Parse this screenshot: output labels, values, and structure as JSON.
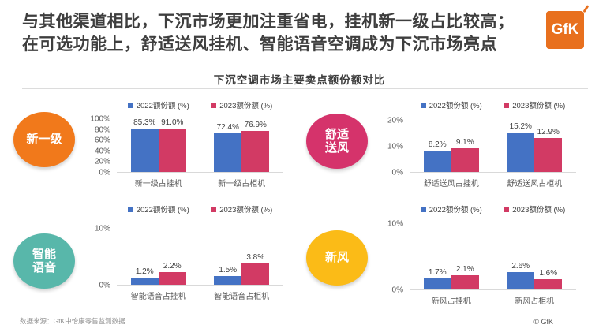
{
  "header": {
    "title_line1": "与其他渠道相比，下沉市场更加注重省电，挂机新一级占比较高；",
    "title_line2": "在可选功能上，舒适送风挂机、智能语音空调成为下沉市场亮点",
    "logo_text": "GfK"
  },
  "chart_section": {
    "title": "下沉空调市场主要卖点额份额对比"
  },
  "colors": {
    "bar_2022": "#4472C4",
    "bar_2023": "#D23A64",
    "logo_bg": "#E8701E",
    "title_text": "#3E3E3E"
  },
  "chart_data": {
    "type": "bar",
    "title": "下沉空调市场主要卖点额份额对比",
    "legend_position": "top",
    "grid": false,
    "groups": [
      {
        "badge": {
          "lines": [
            "新一级"
          ],
          "color": "#F1791B"
        },
        "ymax": 100,
        "yticks": [
          "100%",
          "80%",
          "60%",
          "40%",
          "20%",
          "0%"
        ],
        "categories": [
          "新一级占挂机",
          "新一级占柜机"
        ],
        "series": [
          {
            "name": "2022额份额 (%)",
            "color": "#4472C4",
            "values": [
              85.3,
              72.4
            ],
            "labels": [
              "85.3%",
              "72.4%"
            ]
          },
          {
            "name": "2023额份额 (%)",
            "color": "#D23A64",
            "values": [
              91.0,
              76.9
            ],
            "labels": [
              "91.0%",
              "76.9%"
            ]
          }
        ]
      },
      {
        "badge": {
          "lines": [
            "舒适",
            "送风"
          ],
          "color": "#D5336B"
        },
        "ymax": 20,
        "yticks": [
          "20%",
          "10%",
          "0%"
        ],
        "categories": [
          "舒适送风占挂机",
          "舒适送风占柜机"
        ],
        "series": [
          {
            "name": "2022额份额 (%)",
            "color": "#4472C4",
            "values": [
              8.2,
              15.2
            ],
            "labels": [
              "8.2%",
              "15.2%"
            ]
          },
          {
            "name": "2023额份额 (%)",
            "color": "#D23A64",
            "values": [
              9.1,
              12.9
            ],
            "labels": [
              "9.1%",
              "12.9%"
            ]
          }
        ]
      },
      {
        "badge": {
          "lines": [
            "智能",
            "语音"
          ],
          "color": "#58B7AA"
        },
        "ymax": 10,
        "yticks": [
          "10%",
          "0%"
        ],
        "categories": [
          "智能语音占挂机",
          "智能语音占柜机"
        ],
        "series": [
          {
            "name": "2022额份额 (%)",
            "color": "#4472C4",
            "values": [
              1.2,
              1.5
            ],
            "labels": [
              "1.2%",
              "1.5%"
            ]
          },
          {
            "name": "2023额份额 (%)",
            "color": "#D23A64",
            "values": [
              2.2,
              3.8
            ],
            "labels": [
              "2.2%",
              "3.8%"
            ]
          }
        ]
      },
      {
        "badge": {
          "lines": [
            "新风"
          ],
          "color": "#FBBB17"
        },
        "ymax": 10,
        "yticks": [
          "10%",
          "0%"
        ],
        "categories": [
          "新风占挂机",
          "新风占柜机"
        ],
        "series": [
          {
            "name": "2022额份额 (%)",
            "color": "#4472C4",
            "values": [
              1.7,
              2.6
            ],
            "labels": [
              "1.7%",
              "2.6%"
            ]
          },
          {
            "name": "2023额份额 (%)",
            "color": "#D23A64",
            "values": [
              2.1,
              1.6
            ],
            "labels": [
              "2.1%",
              "1.6%"
            ]
          }
        ]
      }
    ]
  },
  "footer": {
    "source": "数据来源：GfK中怡康零售监测数据",
    "copyright": "© GfK"
  }
}
